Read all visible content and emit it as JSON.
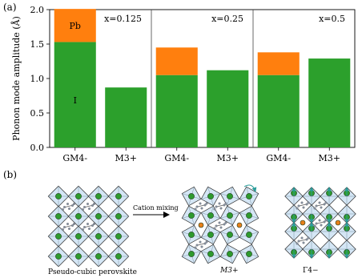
{
  "panel_a_label": "(a)",
  "panel_b_label": "(b)",
  "chart_data": {
    "type": "bar",
    "stacked": true,
    "ylabel": "Phonon mode amplitude (Å)",
    "ylim": [
      0.0,
      2.0
    ],
    "yticks": [
      "0.0",
      "0.5",
      "1.0",
      "1.5",
      "2.0"
    ],
    "groups": [
      {
        "label": "x=0.125",
        "categories": [
          "GM4-",
          "M3+"
        ],
        "I": [
          1.53,
          0.87
        ],
        "Pb": [
          0.48,
          0.0
        ]
      },
      {
        "label": "x=0.25",
        "categories": [
          "GM4-",
          "M3+"
        ],
        "I": [
          1.05,
          1.12
        ],
        "Pb": [
          0.4,
          0.0
        ]
      },
      {
        "label": "x=0.5",
        "categories": [
          "GM4-",
          "M3+"
        ],
        "I": [
          1.05,
          1.29
        ],
        "Pb": [
          0.33,
          0.0
        ]
      }
    ],
    "series": [
      {
        "name": "I",
        "color": "#2ca02c"
      },
      {
        "name": "Pb",
        "color": "#ff7f0e"
      }
    ],
    "bar_annotations": [
      "Pb",
      "I"
    ]
  },
  "panel_b": {
    "arrow_label": "Cation mixing",
    "structures": [
      {
        "caption": "Pseudo-cubic perovskite"
      },
      {
        "caption": "M3+"
      },
      {
        "caption": "Γ4−"
      }
    ]
  }
}
